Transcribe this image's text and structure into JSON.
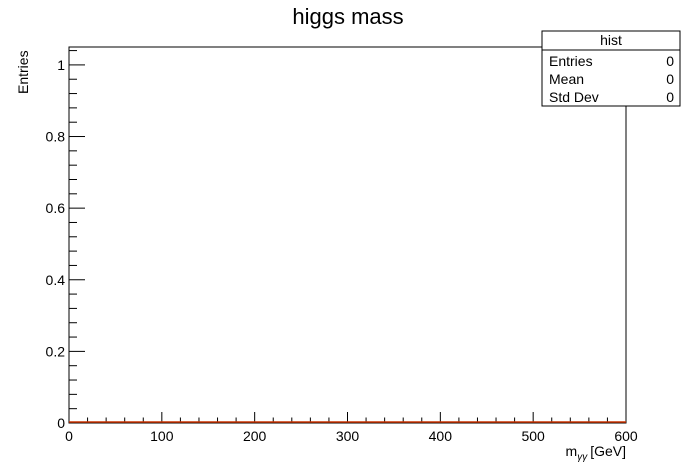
{
  "chart_data": {
    "type": "bar",
    "title": "higgs mass",
    "xlabel_main": "m",
    "xlabel_sub": "γγ",
    "xlabel_unit": "[GeV]",
    "ylabel": "Entries",
    "xlim": [
      0,
      600
    ],
    "ylim": [
      0,
      1.05
    ],
    "x_ticks": [
      0,
      100,
      200,
      300,
      400,
      500,
      600
    ],
    "y_ticks": [
      0,
      0.2,
      0.4,
      0.6,
      0.8,
      1
    ],
    "y_tick_labels": [
      "0",
      "0.2",
      "0.4",
      "0.6",
      "0.8",
      "1"
    ],
    "series": [
      {
        "x": [
          0,
          600
        ],
        "values": [
          0,
          0
        ],
        "color": "#cc3300"
      }
    ],
    "grid": false,
    "stats_box": {
      "name": "hist",
      "rows": [
        {
          "label": "Entries",
          "value": "0"
        },
        {
          "label": "Mean",
          "value": "0"
        },
        {
          "label": "Std Dev",
          "value": "0"
        }
      ]
    }
  }
}
